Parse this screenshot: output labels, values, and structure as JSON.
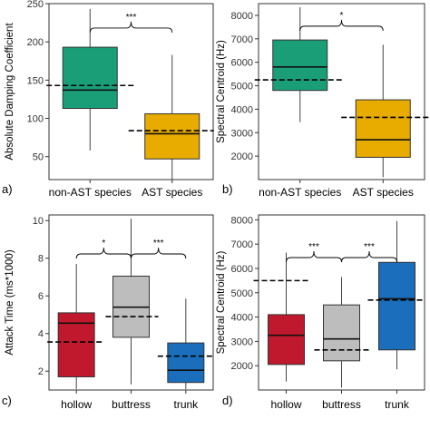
{
  "chart_data": [
    {
      "type": "box",
      "panel_label": "a)",
      "ylabel": "Absolute Damping Coefficient",
      "ylim": [
        20,
        250
      ],
      "yticks": [
        50,
        100,
        150,
        200,
        250
      ],
      "categories": [
        "non-AST species",
        "AST species"
      ],
      "colors": [
        "#1a9e78",
        "#e8ab00"
      ],
      "boxes": [
        {
          "min": 58,
          "q1": 113,
          "median": 137,
          "q3": 193,
          "max": 243,
          "mean": 143
        },
        {
          "min": 20,
          "q1": 47,
          "median": 80,
          "q3": 106,
          "max": 183,
          "mean": 84
        }
      ],
      "significance": [
        {
          "from": 0,
          "to": 1,
          "label": "***"
        }
      ]
    },
    {
      "type": "box",
      "panel_label": "b)",
      "ylabel": "Spectral Centroid (Hz)",
      "ylim": [
        1000,
        8500
      ],
      "yticks": [
        2000,
        3000,
        4000,
        5000,
        6000,
        7000,
        8000
      ],
      "categories": [
        "non-AST species",
        "AST species"
      ],
      "colors": [
        "#1a9e78",
        "#e8ab00"
      ],
      "boxes": [
        {
          "min": 3450,
          "q1": 4800,
          "median": 5800,
          "q3": 6950,
          "max": 8350,
          "mean": 5250
        },
        {
          "min": 1100,
          "q1": 1950,
          "median": 2700,
          "q3": 4400,
          "max": 6750,
          "mean": 3650
        }
      ],
      "significance": [
        {
          "from": 0,
          "to": 1,
          "label": "*"
        }
      ]
    },
    {
      "type": "box",
      "panel_label": "c)",
      "ylabel": "Attack Time (ms*1000)",
      "ylim": [
        1,
        10.3
      ],
      "yticks": [
        2,
        4,
        6,
        8,
        10
      ],
      "categories": [
        "hollow",
        "buttress",
        "trunk"
      ],
      "colors": [
        "#c0182c",
        "#bdbdbd",
        "#1a6ebc"
      ],
      "boxes": [
        {
          "min": 1.05,
          "q1": 1.7,
          "median": 4.55,
          "q3": 5.1,
          "max": 7.7,
          "mean": 3.55
        },
        {
          "min": 1.3,
          "q1": 3.8,
          "median": 5.4,
          "q3": 7.05,
          "max": 10.1,
          "mean": 4.9
        },
        {
          "min": 1.05,
          "q1": 1.4,
          "median": 2.05,
          "q3": 3.5,
          "max": 5.85,
          "mean": 2.8
        }
      ],
      "significance": [
        {
          "from": 0,
          "to": 1,
          "label": "*"
        },
        {
          "from": 1,
          "to": 2,
          "label": "***"
        }
      ]
    },
    {
      "type": "box",
      "panel_label": "d)",
      "ylabel": "Spectral Centroid (Hz)",
      "ylim": [
        1000,
        8200
      ],
      "yticks": [
        2000,
        3000,
        4000,
        5000,
        6000,
        7000,
        8000
      ],
      "categories": [
        "hollow",
        "buttress",
        "trunk"
      ],
      "colors": [
        "#c0182c",
        "#bdbdbd",
        "#1a6ebc"
      ],
      "boxes": [
        {
          "min": 1350,
          "q1": 2050,
          "median": 3250,
          "q3": 4100,
          "max": 6650,
          "mean": 5500
        },
        {
          "min": 1100,
          "q1": 2200,
          "median": 3100,
          "q3": 4500,
          "max": 5650,
          "mean": 2650
        },
        {
          "min": 1850,
          "q1": 2650,
          "median": 4750,
          "q3": 6250,
          "max": 7950,
          "mean": 4700
        }
      ],
      "significance": [
        {
          "from": 0,
          "to": 1,
          "label": "***"
        },
        {
          "from": 1,
          "to": 2,
          "label": "***"
        }
      ]
    }
  ]
}
